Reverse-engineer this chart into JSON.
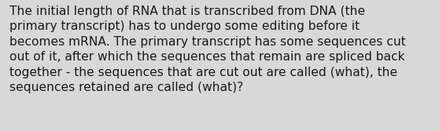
{
  "text": "The initial length of RNA that is transcribed from DNA (the\nprimary transcript) has to undergo some editing before it\nbecomes mRNA. The primary transcript has some sequences cut\nout of it, after which the sequences that remain are spliced back\ntogether - the sequences that are cut out are called (what), the\nsequences retained are called (what)?",
  "background_color": "#c8c8c8",
  "card_color": "#d8d8d8",
  "text_color": "#1a1a1a",
  "font_size": 11.2,
  "fig_width": 5.58,
  "fig_height": 1.67
}
